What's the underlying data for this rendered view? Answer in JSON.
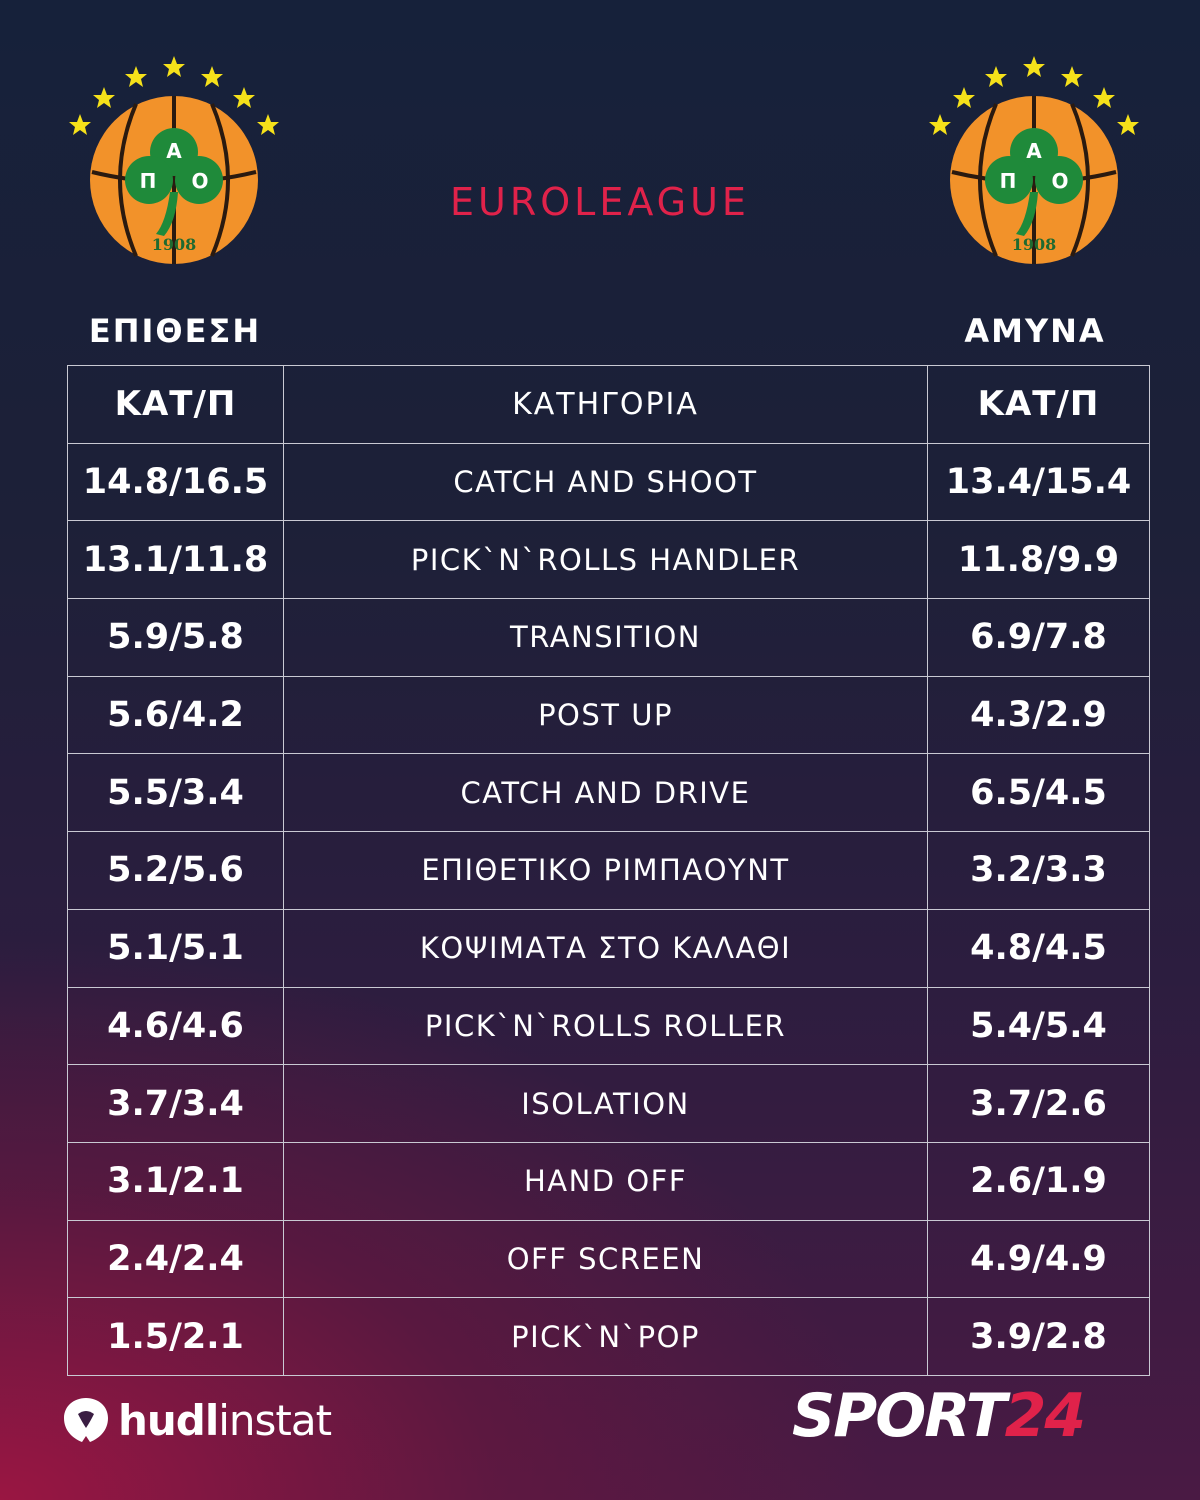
{
  "header": {
    "league_title": "EUROLEAGUE",
    "offense_label": "ΕΠΙΘΕΣΗ",
    "defense_label": "ΑΜΥΝΑ"
  },
  "club_logo": {
    "letters_top": "Α",
    "letters_left": "Π",
    "letters_right": "Ο",
    "year": "1908",
    "colors": {
      "ball": "#f2922a",
      "clover": "#1f8a3a",
      "stars": "#f5e11a",
      "seams": "#2a1a10"
    }
  },
  "table": {
    "headers": [
      "ΚΑΤ/Π",
      "ΚΑΤΗΓΟΡΙΑ",
      "ΚΑΤ/Π"
    ],
    "rows": [
      {
        "offense": "14.8/16.5",
        "category": "CATCH AND SHOOT",
        "defense": "13.4/15.4"
      },
      {
        "offense": "13.1/11.8",
        "category": "PICK`N`ROLLS HANDLER",
        "defense": "11.8/9.9"
      },
      {
        "offense": "5.9/5.8",
        "category": "TRANSITION",
        "defense": "6.9/7.8"
      },
      {
        "offense": "5.6/4.2",
        "category": "POST UP",
        "defense": "4.3/2.9"
      },
      {
        "offense": "5.5/3.4",
        "category": "CATCH AND DRIVE",
        "defense": "6.5/4.5"
      },
      {
        "offense": "5.2/5.6",
        "category": "ΕΠΙΘΕΤΙΚΟ ΡΙΜΠΑΟΥΝΤ",
        "defense": "3.2/3.3"
      },
      {
        "offense": "5.1/5.1",
        "category": "ΚΟΨΙΜΑΤΑ ΣΤΟ ΚΑΛΑΘΙ",
        "defense": "4.8/4.5"
      },
      {
        "offense": "4.6/4.6",
        "category": "PICK`N`ROLLS ROLLER",
        "defense": "5.4/5.4"
      },
      {
        "offense": "3.7/3.4",
        "category": "ISOLATION",
        "defense": "3.7/2.6"
      },
      {
        "offense": "3.1/2.1",
        "category": "HAND OFF",
        "defense": "2.6/1.9"
      },
      {
        "offense": "2.4/2.4",
        "category": "OFF SCREEN",
        "defense": "4.9/4.9"
      },
      {
        "offense": "1.5/2.1",
        "category": "PICK`N`POP",
        "defense": "3.9/2.8"
      }
    ]
  },
  "footer": {
    "hudl_bold": "hudl",
    "hudl_light": "instat",
    "sport_white": "SPORT",
    "sport_red": "24",
    "accent_color": "#e0224a"
  }
}
